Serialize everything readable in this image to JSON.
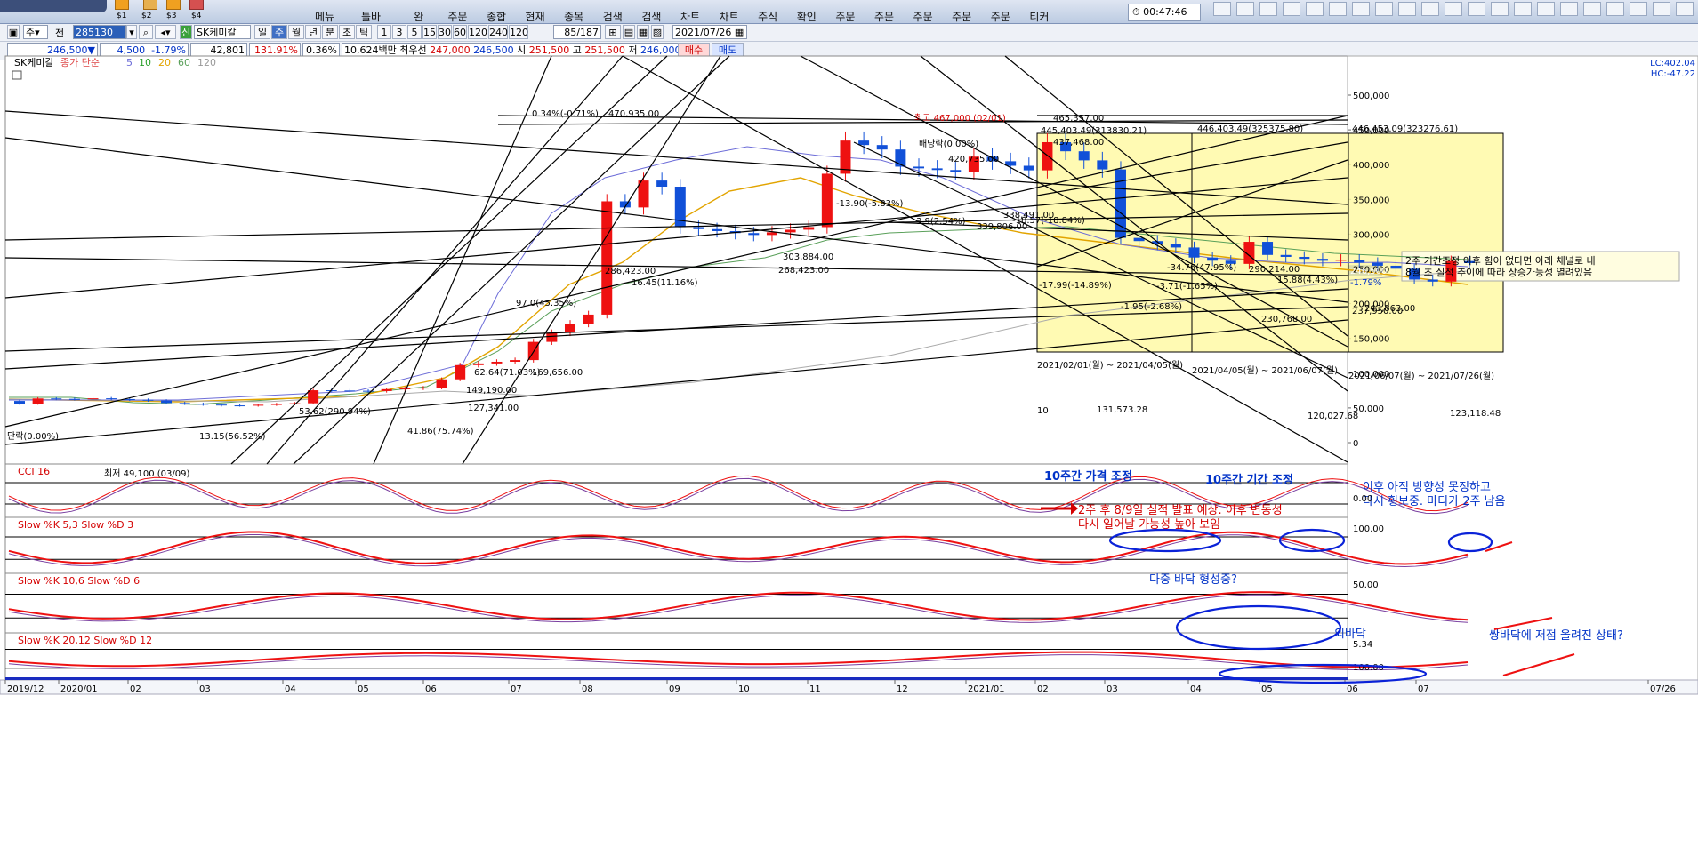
{
  "menu": {
    "left_items": [
      "메뉴",
      "툴바"
    ],
    "items": [
      {
        "l1": "",
        "l2": "완"
      },
      {
        "l1": "",
        "l2": "주문"
      },
      {
        "l1": "",
        "l2": "종합"
      },
      {
        "l1": "",
        "l2": "현재"
      },
      {
        "l1": "",
        "l2": "종목"
      },
      {
        "l1": "",
        "l2": "검색"
      },
      {
        "l1": "",
        "l2": "검색"
      },
      {
        "l1": "",
        "l2": "차트"
      },
      {
        "l1": "",
        "l2": "차트"
      },
      {
        "l1": "",
        "l2": "주식"
      },
      {
        "l1": "",
        "l2": "확인"
      },
      {
        "l1": "",
        "l2": "주문"
      },
      {
        "l1": "",
        "l2": "주문"
      },
      {
        "l1": "",
        "l2": "주문"
      },
      {
        "l1": "",
        "l2": "주문"
      },
      {
        "l1": "",
        "l2": "주문"
      },
      {
        "l1": "",
        "l2": "티커"
      }
    ],
    "slots": [
      "$1",
      "$2",
      "$3",
      "$4"
    ],
    "clock": "00:47:46"
  },
  "toolbar1": {
    "period_prefix": "주",
    "period_label": "전",
    "code": "285130",
    "name": "SK케미칼",
    "periods": [
      "일",
      "주",
      "월",
      "년",
      "분",
      "초",
      "틱"
    ],
    "intervals": [
      "1",
      "3",
      "5",
      "15",
      "30",
      "60",
      "120",
      "240",
      "120"
    ],
    "count": "85/187",
    "date": "2021/07/26"
  },
  "toolbar2": {
    "price": "246,500▼",
    "change": "4,500",
    "change_pct": "-1.79%",
    "volume": "42,801",
    "vol_pct": "131.91%",
    "turnover_pct": "0.36%",
    "amount": "10,624백만",
    "best_label": "최우선",
    "best_ask": "247,000",
    "best_bid": "246,500",
    "open_label": "시",
    "open": "251,500",
    "high_label": "고",
    "high": "251,500",
    "low_label": "저",
    "low": "246,000",
    "buy": "매수",
    "sell": "매도"
  },
  "legend": {
    "name": "SK케미칼",
    "desc": "종가 단순",
    "ma": [
      "5",
      "10",
      "20",
      "60",
      "120"
    ],
    "ma_colors": [
      "#6d6dd8",
      "#2ca02c",
      "#e2a400",
      "#5aa05a",
      "#999999"
    ],
    "lc": "LC:402.04",
    "hc": "HC:-47.22"
  },
  "price_axis": {
    "labels": [
      "500,000",
      "450,000",
      "400,000",
      "350,000",
      "300,000",
      "250,000",
      "200,000",
      "150,000",
      "100,000",
      "50,000",
      "0"
    ],
    "current": "246,500",
    "current_pct": "-1.79%"
  },
  "time_axis": [
    "2019/12",
    "2020/01",
    "02",
    "03",
    "04",
    "05",
    "06",
    "07",
    "08",
    "09",
    "10",
    "11",
    "12",
    "2021/01",
    "02",
    "03",
    "04",
    "05",
    "06",
    "07",
    "07/26"
  ],
  "chart_data": {
    "type": "candlestick",
    "title": "SK케미칼",
    "x": [
      "2019/12",
      "2020/01",
      "02",
      "03",
      "04",
      "05",
      "06",
      "07",
      "08",
      "09",
      "10",
      "11",
      "12",
      "2021/01",
      "02",
      "03",
      "04",
      "05",
      "06",
      "07"
    ],
    "close_approx": [
      60000,
      62000,
      58000,
      52000,
      75000,
      82000,
      110000,
      160000,
      360000,
      300000,
      310000,
      410000,
      390000,
      420000,
      400000,
      290000,
      275000,
      258000,
      262000,
      246500
    ],
    "ylim": [
      0,
      520000
    ],
    "current_price": 246500,
    "annotations": [
      "0.34%(-0.71%)",
      "470,935.00",
      "최고 467,000 (02/01)",
      "465,357.00",
      "445,403.49(313830.21)",
      "437,468.00",
      "446,403.49(325375.80)",
      "446,453.09(323276.61)",
      "배당락(0.00%)",
      "420,735.00",
      "-13.90(-5.83%)",
      "3.9(2.54%)",
      "339,806.00",
      "-18.57(-18.84%)",
      "338,491.00",
      "303,884.00",
      "286,423.00",
      "268,423.00",
      "16.45(11.16%)",
      "-34.76(47.95%)",
      "290,214.00",
      "-3.71(-1.65%)",
      "-17.99(-14.89%)",
      "15.88(4.43%)",
      "-1.95(-2.68%)",
      "243,863.00",
      "230,768.00",
      "237,950.00",
      "97.0(45.35%)",
      "62.64(71.03%)",
      "169,656.00",
      "149,190.00",
      "127,341.00",
      "53.62(290.94%)",
      "41.86(75.74%)",
      "13.15(56.52%)",
      "단락(0.00%)",
      "최저 49,100 (03/09)",
      "131,573.28",
      "120,027.68",
      "123,118.48",
      "10"
    ],
    "boxes": [
      {
        "period": "2021/02/01(월) ~ 2021/04/05(월)"
      },
      {
        "period": "2021/04/05(월) ~ 2021/06/07(월)"
      },
      {
        "period": "2021/06/07(월) ~ 2021/07/26(월)"
      }
    ],
    "notes": [
      "10주간 가격 조정",
      "10주간 기간 조정",
      "2주 후 8/9일 실적 발표 예상. 이후 변동성",
      "다시 일어날 가능성 높아 보임",
      "이후 아직 방향성 못정하고",
      "다시 횡보중. 마디가 2주 남음",
      "2주 기간조정 이후 힘이 없다면 아래 채널로 내",
      "8월 초 실적 추이에 따라 상승가능성 열려있음"
    ],
    "indicators": [
      {
        "name": "CCI 16",
        "value_label": "0.00"
      },
      {
        "name": "Slow %K 5,3  Slow %D 3",
        "value_label": "100.00",
        "note": "다중 바닥 형성중?"
      },
      {
        "name": "Slow %K 10,6  Slow %D 6",
        "value_label": "50.00",
        "note": "쌍바닥에 저점 올려진 상태?",
        "note2": "외바닥"
      },
      {
        "name": "Slow %K 20,12  Slow %D 12",
        "value_label": "5.34",
        "value_label2": "100.00"
      }
    ]
  }
}
